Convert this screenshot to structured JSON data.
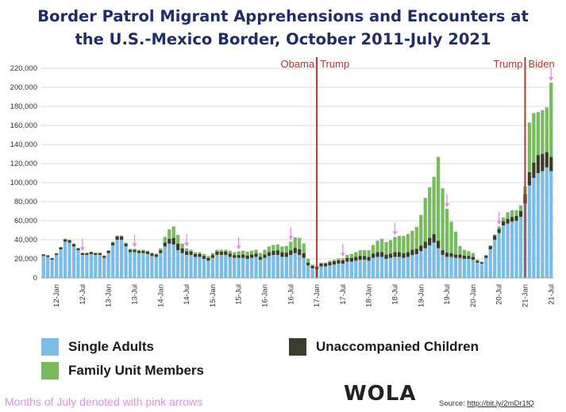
{
  "title_line1": "Border Patrol Migrant Apprehensions and Encounters at",
  "title_line2": "the U.S.-Mexico Border, October 2011-July 2021",
  "legend": {
    "single_adults": "Single Adults",
    "family_units": "Family Unit Members",
    "unaccompanied_children": "Unaccompanied Children"
  },
  "footnote": "Months of July denoted with pink arrows",
  "logo": "WOLA",
  "source_label": "Source:",
  "source_link": "http://bit.ly/2mDr1fQ",
  "colors": {
    "title": "#1f2d6b",
    "single_adults": "#7bbde6",
    "family_units": "#77bb5e",
    "unaccompanied_children": "#3d3a2e",
    "admin_line": "#a93a32",
    "july_arrow": "#e28de6"
  },
  "chart_data": {
    "type": "bar",
    "stacked": true,
    "start_month": "2011-10",
    "end_month": "2021-07",
    "ylim": [
      0,
      220000
    ],
    "yticks": [
      "0",
      "20,000",
      "40,000",
      "60,000",
      "80,000",
      "100,000",
      "120,000",
      "140,000",
      "160,000",
      "180,000",
      "200,000",
      "220,000"
    ],
    "xtick_labels": [
      "12-Jan",
      "12-Jul",
      "13-Jan",
      "13-Jul",
      "14-Jan",
      "14-Jul",
      "15-Jan",
      "15-Jul",
      "16-Jan",
      "16-Jul",
      "17-Jan",
      "17-Jul",
      "18-Jan",
      "18-Jul",
      "19-Jan",
      "19-Jul",
      "20-Jan",
      "20-Jul",
      "21-Jan",
      "21-Jul"
    ],
    "grid": true,
    "legend_position": "bottom",
    "series": [
      {
        "name": "Single Adults",
        "values": [
          23000,
          22000,
          19000,
          24000,
          30000,
          38000,
          37000,
          33000,
          29000,
          24000,
          24000,
          25000,
          24000,
          24000,
          21000,
          26000,
          34000,
          40000,
          40000,
          33000,
          27000,
          27000,
          26000,
          26000,
          25000,
          23000,
          22000,
          26000,
          33000,
          36000,
          35000,
          29000,
          26000,
          24000,
          24000,
          22000,
          22000,
          20000,
          18000,
          21000,
          24000,
          24000,
          24000,
          22000,
          21000,
          21000,
          21000,
          20000,
          21000,
          22000,
          19000,
          21000,
          23000,
          24000,
          24000,
          22000,
          22000,
          24000,
          26000,
          24000,
          21000,
          13000,
          10000,
          9000,
          12000,
          12000,
          13000,
          14000,
          15000,
          15000,
          17000,
          17000,
          18000,
          19000,
          19000,
          18000,
          21000,
          22000,
          22000,
          20000,
          21000,
          22000,
          22000,
          21000,
          22000,
          24000,
          25000,
          28000,
          31000,
          34000,
          37000,
          31000,
          24000,
          22000,
          22000,
          21000,
          21000,
          20000,
          20000,
          19000,
          16000,
          15000,
          21000,
          30000,
          40000,
          47000,
          55000,
          57000,
          59000,
          60000,
          64000,
          78000,
          97000,
          105000,
          110000,
          112000,
          116000,
          112000
        ]
      },
      {
        "name": "Unaccompanied Children",
        "values": [
          1500,
          1500,
          1500,
          1500,
          2000,
          2500,
          2500,
          2500,
          2000,
          2000,
          2000,
          2000,
          2000,
          2000,
          2000,
          2500,
          3000,
          3500,
          3500,
          3000,
          2500,
          2500,
          2500,
          2500,
          2500,
          2500,
          2500,
          3000,
          4000,
          5000,
          7000,
          7000,
          5000,
          4000,
          3500,
          3000,
          3000,
          3000,
          3000,
          3000,
          3500,
          3500,
          3500,
          3500,
          3000,
          3000,
          3500,
          3500,
          3500,
          3500,
          3000,
          3500,
          4000,
          4500,
          5000,
          5000,
          4500,
          5000,
          5500,
          6000,
          5000,
          3000,
          2500,
          2500,
          3000,
          3000,
          3500,
          3500,
          3500,
          3500,
          4000,
          4000,
          4000,
          4000,
          4000,
          4000,
          4500,
          5000,
          5000,
          4500,
          4500,
          5000,
          5000,
          5000,
          5000,
          5500,
          5500,
          6000,
          7000,
          8000,
          9000,
          8000,
          5000,
          4500,
          4000,
          3500,
          3500,
          3500,
          3000,
          3000,
          2000,
          1500,
          2500,
          3500,
          4500,
          4500,
          4500,
          5000,
          5000,
          5000,
          6000,
          10000,
          14000,
          16000,
          19000,
          18000,
          16000,
          15000
        ]
      },
      {
        "name": "Family Unit Members",
        "values": [
          500,
          500,
          500,
          500,
          500,
          500,
          500,
          500,
          500,
          500,
          500,
          500,
          500,
          500,
          500,
          500,
          1000,
          1000,
          1000,
          1000,
          1000,
          1000,
          1000,
          1000,
          1000,
          1000,
          1000,
          2000,
          6000,
          10000,
          12000,
          9000,
          5000,
          3000,
          2000,
          2000,
          2000,
          2000,
          2000,
          2000,
          2000,
          2000,
          2000,
          3000,
          3000,
          4000,
          4000,
          4000,
          4000,
          4000,
          4000,
          5000,
          6000,
          6000,
          6000,
          6000,
          7000,
          9000,
          11000,
          12000,
          10000,
          4000,
          1500,
          1000,
          1000,
          1000,
          1500,
          1500,
          2000,
          2000,
          3000,
          4000,
          5000,
          6000,
          6000,
          7000,
          9000,
          12000,
          14000,
          13000,
          14000,
          16000,
          17000,
          18000,
          19000,
          20000,
          23000,
          32000,
          46000,
          53000,
          60000,
          88000,
          65000,
          46000,
          33000,
          24000,
          9000,
          6000,
          5000,
          4000,
          1000,
          500,
          500,
          500,
          1000,
          2500,
          4000,
          7000,
          7000,
          6000,
          6000,
          8000,
          52000,
          52000,
          45000,
          46000,
          47000,
          78000
        ]
      }
    ],
    "july_arrow_months": [
      "2012-07",
      "2013-07",
      "2014-07",
      "2015-07",
      "2016-07",
      "2017-07",
      "2018-07",
      "2019-07",
      "2020-07",
      "2021-07"
    ],
    "admin_lines": [
      {
        "month": "2017-01",
        "left_label": "Obama",
        "right_label": "Trump"
      },
      {
        "month": "2021-01",
        "left_label": "Trump",
        "right_label": "Biden"
      }
    ]
  }
}
